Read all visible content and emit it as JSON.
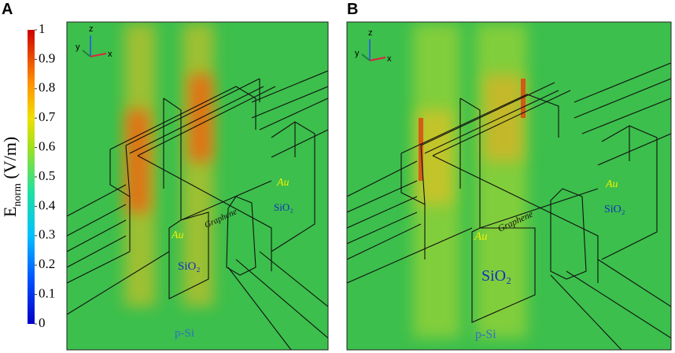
{
  "colorbar": {
    "symbol": "E",
    "subscript": "norm",
    "unit": "(V/m)",
    "range": [
      0,
      1
    ],
    "ticks": [
      0,
      0.1,
      0.2,
      0.3,
      0.4,
      0.5,
      0.6,
      0.7,
      0.8,
      0.9,
      1
    ]
  },
  "panels": [
    {
      "label": "A",
      "axes": [
        "z",
        "y",
        "x"
      ],
      "annotations": [
        "Au",
        "Graphene",
        "SiO₂",
        "Au",
        "SiO₂",
        "p-Si"
      ]
    },
    {
      "label": "B",
      "axes": [
        "z",
        "y",
        "x"
      ],
      "annotations": [
        "Au",
        "Graphene",
        "SiO₂",
        "Au",
        "SiO₂",
        "p-Si"
      ]
    }
  ]
}
